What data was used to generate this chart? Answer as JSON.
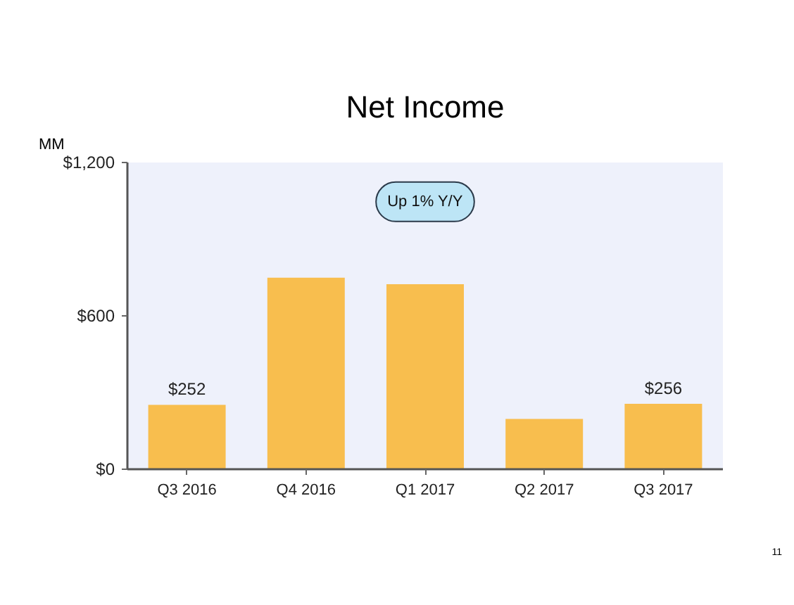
{
  "chart_data": {
    "type": "bar",
    "title": "Net Income",
    "ylabel": "MM",
    "categories": [
      "Q3 2016",
      "Q4 2016",
      "Q1 2017",
      "Q2 2017",
      "Q3 2017"
    ],
    "values": [
      252,
      749,
      724,
      197,
      256
    ],
    "color": "#f8be4e",
    "value_labels": [
      "$252",
      null,
      null,
      null,
      "$256"
    ],
    "ylim": [
      0,
      1200
    ],
    "yticks": [
      {
        "value": 0,
        "label": "$0"
      },
      {
        "value": 600,
        "label": "$600"
      },
      {
        "value": 1200,
        "label": "$1,200"
      }
    ],
    "annotations": [
      "Up 1% Y/Y",
      "11"
    ]
  }
}
